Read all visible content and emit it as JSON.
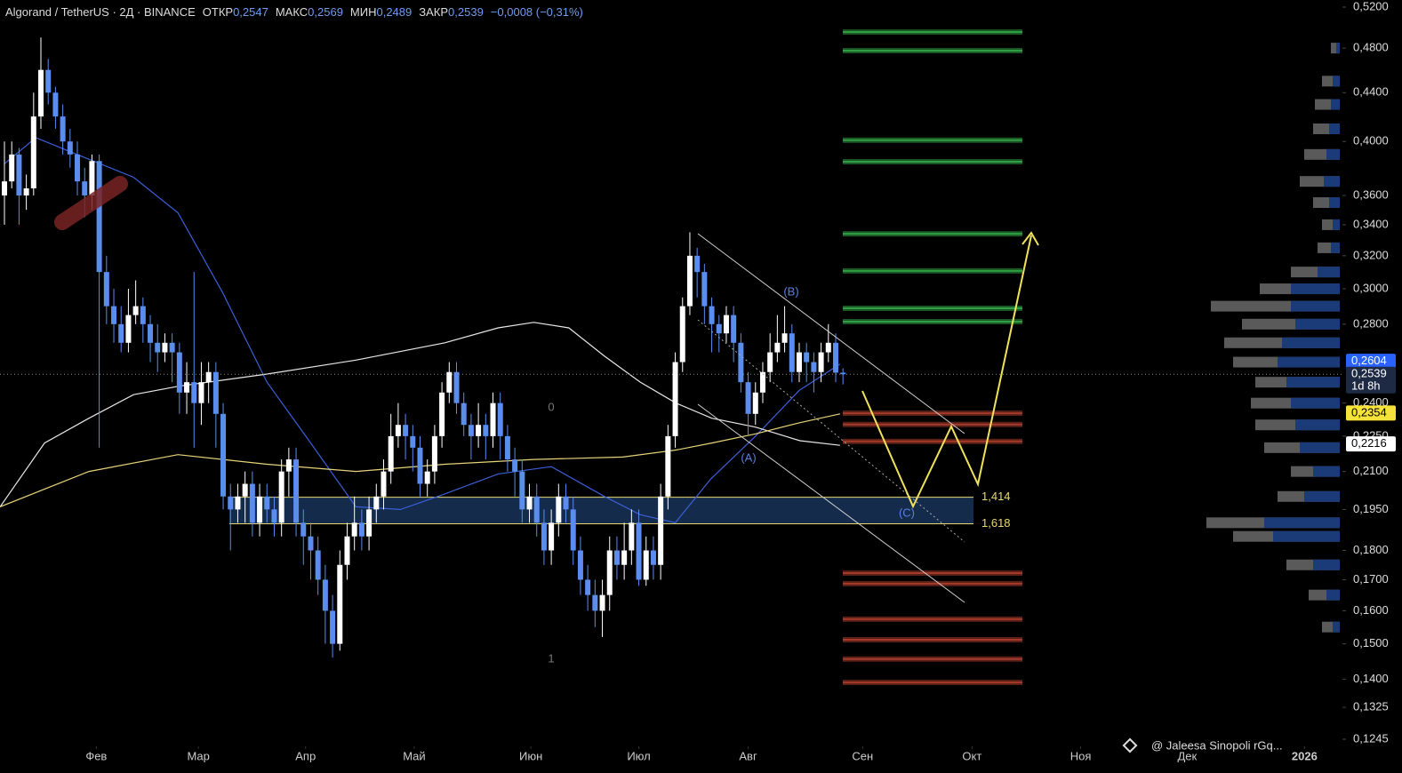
{
  "chart_data": {
    "type": "candlestick",
    "header": {
      "title": "Algorand / TetherUS · 2Д · BINANCE",
      "open_label": "ОТКР",
      "open": "0,2547",
      "high_label": "МАКС",
      "high": "0,2569",
      "low_label": "МИН",
      "low": "0,2489",
      "close_label": "ЗАКР",
      "close": "0,2539",
      "change": "−0,0008 (−0,31%)"
    },
    "log_scale": true,
    "up_color": "#ffffff",
    "down_color": "#5b8def",
    "xlim": [
      -0.61,
      183.5
    ],
    "xticks": [
      {
        "value": 12.6,
        "label": "Фев"
      },
      {
        "value": 26.6,
        "label": "Мар"
      },
      {
        "value": 41.3,
        "label": "Апр"
      },
      {
        "value": 56.2,
        "label": "Май"
      },
      {
        "value": 72.2,
        "label": "Июн"
      },
      {
        "value": 87,
        "label": "Июл"
      },
      {
        "value": 102,
        "label": "Авг"
      },
      {
        "value": 117.7,
        "label": "Сен"
      },
      {
        "value": 132.7,
        "label": "Окт"
      },
      {
        "value": 147.6,
        "label": "Ноя"
      },
      {
        "value": 162.2,
        "label": "Дек"
      },
      {
        "value": 178.3,
        "label": "2026"
      }
    ],
    "ylim": [
      0.1245,
      0.52
    ],
    "yticks": [
      {
        "value": 0.52,
        "label": "0,5200"
      },
      {
        "value": 0.48,
        "label": "0,4800"
      },
      {
        "value": 0.44,
        "label": "0,4400"
      },
      {
        "value": 0.4,
        "label": "0,4000"
      },
      {
        "value": 0.36,
        "label": "0,3600"
      },
      {
        "value": 0.34,
        "label": "0,3400"
      },
      {
        "value": 0.32,
        "label": "0,3200"
      },
      {
        "value": 0.3,
        "label": "0,3000"
      },
      {
        "value": 0.28,
        "label": "0,2800"
      },
      {
        "value": 0.24,
        "label": "0,2400"
      },
      {
        "value": 0.225,
        "label": "0,2250"
      },
      {
        "value": 0.21,
        "label": "0,2100"
      },
      {
        "value": 0.195,
        "label": "0,1950"
      },
      {
        "value": 0.18,
        "label": "0,1800"
      },
      {
        "value": 0.17,
        "label": "0,1700"
      },
      {
        "value": 0.16,
        "label": "0,1600"
      },
      {
        "value": 0.15,
        "label": "0,1500"
      },
      {
        "value": 0.14,
        "label": "0,1400"
      },
      {
        "value": 0.1325,
        "label": "0,1325"
      },
      {
        "value": 0.1245,
        "label": "0,1245"
      }
    ],
    "ohlc": [
      [
        0.36,
        0.4,
        0.34,
        0.37
      ],
      [
        0.37,
        0.4,
        0.365,
        0.39
      ],
      [
        0.39,
        0.395,
        0.34,
        0.36
      ],
      [
        0.36,
        0.375,
        0.35,
        0.365
      ],
      [
        0.365,
        0.44,
        0.36,
        0.42
      ],
      [
        0.42,
        0.49,
        0.41,
        0.46
      ],
      [
        0.46,
        0.47,
        0.43,
        0.44
      ],
      [
        0.44,
        0.445,
        0.41,
        0.42
      ],
      [
        0.42,
        0.43,
        0.39,
        0.4
      ],
      [
        0.4,
        0.41,
        0.38,
        0.39
      ],
      [
        0.39,
        0.4,
        0.36,
        0.37
      ],
      [
        0.37,
        0.38,
        0.345,
        0.36
      ],
      [
        0.36,
        0.39,
        0.35,
        0.385
      ],
      [
        0.385,
        0.39,
        0.22,
        0.31
      ],
      [
        0.31,
        0.32,
        0.28,
        0.29
      ],
      [
        0.29,
        0.3,
        0.27,
        0.28
      ],
      [
        0.28,
        0.29,
        0.265,
        0.27
      ],
      [
        0.27,
        0.3,
        0.265,
        0.285
      ],
      [
        0.285,
        0.305,
        0.28,
        0.29
      ],
      [
        0.29,
        0.295,
        0.27,
        0.28
      ],
      [
        0.28,
        0.285,
        0.26,
        0.27
      ],
      [
        0.27,
        0.28,
        0.255,
        0.265
      ],
      [
        0.265,
        0.275,
        0.26,
        0.27
      ],
      [
        0.27,
        0.275,
        0.25,
        0.265
      ],
      [
        0.265,
        0.27,
        0.235,
        0.245
      ],
      [
        0.245,
        0.26,
        0.235,
        0.25
      ],
      [
        0.25,
        0.31,
        0.22,
        0.24
      ],
      [
        0.24,
        0.26,
        0.23,
        0.25
      ],
      [
        0.25,
        0.26,
        0.24,
        0.255
      ],
      [
        0.255,
        0.26,
        0.22,
        0.235
      ],
      [
        0.235,
        0.24,
        0.195,
        0.2
      ],
      [
        0.2,
        0.205,
        0.18,
        0.195
      ],
      [
        0.195,
        0.205,
        0.19,
        0.2
      ],
      [
        0.2,
        0.21,
        0.19,
        0.205
      ],
      [
        0.205,
        0.21,
        0.185,
        0.19
      ],
      [
        0.19,
        0.205,
        0.185,
        0.2
      ],
      [
        0.2,
        0.205,
        0.19,
        0.195
      ],
      [
        0.195,
        0.2,
        0.185,
        0.19
      ],
      [
        0.19,
        0.215,
        0.185,
        0.21
      ],
      [
        0.21,
        0.22,
        0.2,
        0.215
      ],
      [
        0.215,
        0.22,
        0.185,
        0.19
      ],
      [
        0.19,
        0.195,
        0.175,
        0.185
      ],
      [
        0.185,
        0.19,
        0.17,
        0.18
      ],
      [
        0.18,
        0.185,
        0.165,
        0.17
      ],
      [
        0.17,
        0.175,
        0.15,
        0.16
      ],
      [
        0.16,
        0.165,
        0.146,
        0.15
      ],
      [
        0.15,
        0.18,
        0.148,
        0.175
      ],
      [
        0.175,
        0.19,
        0.17,
        0.185
      ],
      [
        0.185,
        0.2,
        0.18,
        0.19
      ],
      [
        0.19,
        0.195,
        0.18,
        0.185
      ],
      [
        0.185,
        0.2,
        0.18,
        0.195
      ],
      [
        0.195,
        0.205,
        0.19,
        0.2
      ],
      [
        0.2,
        0.215,
        0.195,
        0.21
      ],
      [
        0.21,
        0.235,
        0.205,
        0.225
      ],
      [
        0.225,
        0.24,
        0.22,
        0.23
      ],
      [
        0.23,
        0.235,
        0.215,
        0.225
      ],
      [
        0.225,
        0.23,
        0.21,
        0.22
      ],
      [
        0.22,
        0.225,
        0.2,
        0.205
      ],
      [
        0.205,
        0.215,
        0.2,
        0.21
      ],
      [
        0.21,
        0.23,
        0.205,
        0.225
      ],
      [
        0.225,
        0.25,
        0.22,
        0.245
      ],
      [
        0.245,
        0.26,
        0.24,
        0.255
      ],
      [
        0.255,
        0.26,
        0.235,
        0.24
      ],
      [
        0.24,
        0.245,
        0.225,
        0.23
      ],
      [
        0.23,
        0.235,
        0.215,
        0.225
      ],
      [
        0.225,
        0.24,
        0.22,
        0.23
      ],
      [
        0.23,
        0.235,
        0.215,
        0.225
      ],
      [
        0.225,
        0.245,
        0.22,
        0.24
      ],
      [
        0.24,
        0.245,
        0.215,
        0.225
      ],
      [
        0.225,
        0.23,
        0.21,
        0.215
      ],
      [
        0.215,
        0.22,
        0.2,
        0.21
      ],
      [
        0.21,
        0.215,
        0.19,
        0.195
      ],
      [
        0.195,
        0.205,
        0.19,
        0.2
      ],
      [
        0.2,
        0.205,
        0.185,
        0.19
      ],
      [
        0.19,
        0.195,
        0.175,
        0.18
      ],
      [
        0.18,
        0.195,
        0.175,
        0.19
      ],
      [
        0.19,
        0.205,
        0.185,
        0.2
      ],
      [
        0.2,
        0.205,
        0.19,
        0.195
      ],
      [
        0.195,
        0.2,
        0.175,
        0.18
      ],
      [
        0.18,
        0.185,
        0.165,
        0.17
      ],
      [
        0.17,
        0.175,
        0.16,
        0.165
      ],
      [
        0.165,
        0.17,
        0.155,
        0.16
      ],
      [
        0.16,
        0.17,
        0.152,
        0.165
      ],
      [
        0.165,
        0.185,
        0.16,
        0.18
      ],
      [
        0.18,
        0.185,
        0.17,
        0.175
      ],
      [
        0.175,
        0.19,
        0.17,
        0.18
      ],
      [
        0.18,
        0.195,
        0.175,
        0.19
      ],
      [
        0.19,
        0.195,
        0.168,
        0.17
      ],
      [
        0.17,
        0.185,
        0.168,
        0.18
      ],
      [
        0.18,
        0.185,
        0.17,
        0.175
      ],
      [
        0.175,
        0.205,
        0.17,
        0.2
      ],
      [
        0.2,
        0.23,
        0.195,
        0.225
      ],
      [
        0.225,
        0.265,
        0.22,
        0.26
      ],
      [
        0.26,
        0.295,
        0.255,
        0.29
      ],
      [
        0.29,
        0.335,
        0.285,
        0.32
      ],
      [
        0.32,
        0.325,
        0.295,
        0.31
      ],
      [
        0.31,
        0.315,
        0.28,
        0.29
      ],
      [
        0.29,
        0.295,
        0.265,
        0.28
      ],
      [
        0.28,
        0.285,
        0.265,
        0.275
      ],
      [
        0.275,
        0.29,
        0.27,
        0.285
      ],
      [
        0.285,
        0.29,
        0.26,
        0.27
      ],
      [
        0.27,
        0.275,
        0.245,
        0.25
      ],
      [
        0.25,
        0.255,
        0.225,
        0.235
      ],
      [
        0.235,
        0.25,
        0.23,
        0.245
      ],
      [
        0.245,
        0.26,
        0.24,
        0.255
      ],
      [
        0.255,
        0.275,
        0.25,
        0.265
      ],
      [
        0.265,
        0.285,
        0.26,
        0.27
      ],
      [
        0.27,
        0.29,
        0.265,
        0.275
      ],
      [
        0.275,
        0.28,
        0.25,
        0.255
      ],
      [
        0.255,
        0.27,
        0.25,
        0.265
      ],
      [
        0.265,
        0.27,
        0.25,
        0.26
      ],
      [
        0.26,
        0.265,
        0.245,
        0.255
      ],
      [
        0.255,
        0.27,
        0.25,
        0.265
      ],
      [
        0.265,
        0.28,
        0.26,
        0.27
      ],
      [
        0.27,
        0.275,
        0.25,
        0.2547
      ],
      [
        0.2547,
        0.2569,
        0.2489,
        0.2539
      ]
    ],
    "series": [
      {
        "color": "#3b5fd9",
        "x": [
          0,
          4.3,
          10.4,
          17.7,
          23.8,
          29.9,
          36,
          42,
          48.2,
          54.3,
          60.4,
          67.7,
          75,
          82.3,
          87.2,
          92,
          96.9,
          103,
          109,
          114.6
        ],
        "values": [
          0.383,
          0.403,
          0.389,
          0.373,
          0.348,
          0.298,
          0.25,
          0.222,
          0.196,
          0.195,
          0.201,
          0.209,
          0.212,
          0.2,
          0.193,
          0.19,
          0.207,
          0.225,
          0.246,
          0.259
        ]
      },
      {
        "color": "#e8e8e8",
        "x": [
          -0.6,
          5.5,
          11.6,
          17.7,
          23.8,
          36,
          48.2,
          60.4,
          67.7,
          72.6,
          77.4,
          82.3,
          87.2,
          92.1,
          97,
          103,
          109.1,
          114.6
        ],
        "values": [
          0.196,
          0.222,
          0.233,
          0.244,
          0.248,
          0.254,
          0.261,
          0.27,
          0.278,
          0.281,
          0.278,
          0.263,
          0.25,
          0.24,
          0.233,
          0.229,
          0.223,
          0.221
        ]
      },
      {
        "color": "#e6d37a",
        "x": [
          -0.6,
          11.6,
          23.8,
          36,
          48.2,
          60.4,
          72.6,
          84.8,
          92.1,
          97,
          103,
          109.1,
          114.6
        ],
        "values": [
          0.196,
          0.21,
          0.217,
          0.213,
          0.21,
          0.213,
          0.215,
          0.216,
          0.219,
          0.222,
          0.226,
          0.231,
          0.235
        ]
      }
    ],
    "levels": {
      "green": {
        "color": "#2f9e44",
        "values": [
          0.4953,
          0.4776,
          0.401,
          0.3845,
          0.334,
          0.3107,
          0.2888,
          0.2814
        ]
      },
      "red": {
        "color": "#a33a2a",
        "values": [
          0.2353,
          0.2302,
          0.2227,
          0.1722,
          0.1687,
          0.1574,
          0.1512,
          0.1456,
          0.1391
        ]
      }
    },
    "zone": {
      "values": [
        0.1997,
        0.1896
      ],
      "labels": [
        "1,414",
        "1,618"
      ]
    },
    "annotations": {
      "fib_0": "0",
      "fib_1": "1",
      "wave_a": "(A)",
      "wave_b": "(B)",
      "wave_c": "(C)"
    },
    "volume_profile": {
      "vlim": [
        0,
        150
      ],
      "prices": [
        0.48,
        0.45,
        0.43,
        0.41,
        0.39,
        0.37,
        0.355,
        0.34,
        0.325,
        0.31,
        0.3,
        0.29,
        0.28,
        0.27,
        0.26,
        0.25,
        0.24,
        0.23,
        0.22,
        0.21,
        0.2,
        0.19,
        0.185,
        0.175,
        0.165,
        0.155
      ],
      "total": [
        10,
        20,
        28,
        30,
        40,
        45,
        30,
        20,
        25,
        55,
        90,
        145,
        110,
        130,
        120,
        95,
        100,
        95,
        85,
        55,
        70,
        150,
        120,
        60,
        35,
        20
      ],
      "buy": [
        4,
        8,
        10,
        12,
        15,
        18,
        12,
        8,
        10,
        25,
        55,
        55,
        50,
        65,
        70,
        60,
        55,
        50,
        45,
        30,
        40,
        85,
        75,
        30,
        15,
        8
      ]
    },
    "price_labels": [
      {
        "value": 0.2604,
        "label": "0,2604"
      },
      {
        "value": 0.2539,
        "label": "0,2539",
        "countdown": "1d 8h"
      },
      {
        "value": 0.2354,
        "label": "0,2354"
      },
      {
        "value": 0.2216,
        "label": "0,2216"
      }
    ],
    "watermark": "@ Jaleesa Sinopoli rGq..."
  }
}
